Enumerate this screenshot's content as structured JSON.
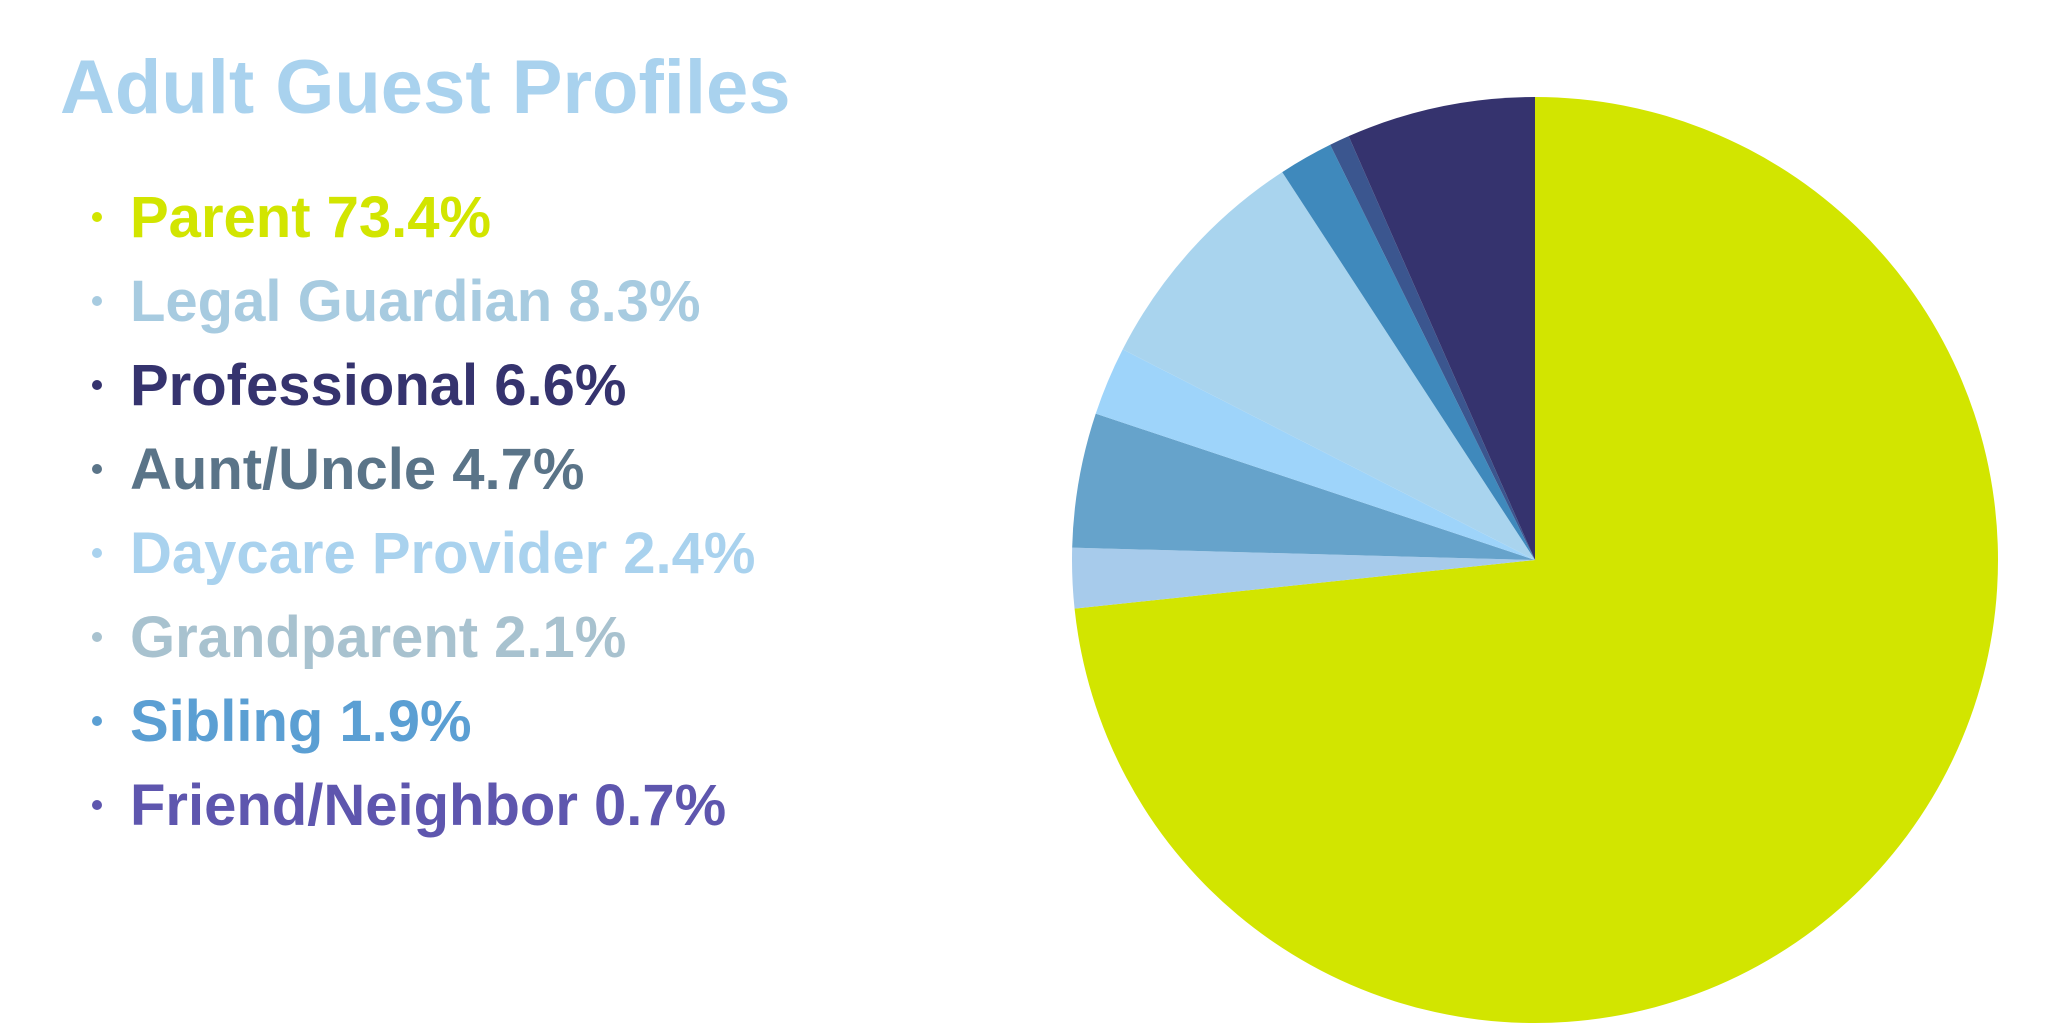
{
  "title": "Adult Guest Profiles",
  "title_color": "#a9d2ee",
  "chart_data": {
    "type": "pie",
    "title": "Adult Guest Profiles",
    "slices": [
      {
        "label": "Parent",
        "value": 73.4,
        "text": "Parent 73.4%",
        "color": "#d2e500"
      },
      {
        "label": "Legal Guardian",
        "value": 8.3,
        "text": "Legal Guardian 8.3%",
        "color": "#a9d4ee"
      },
      {
        "label": "Professional",
        "value": 6.6,
        "text": "Professional 6.6%",
        "color": "#35336e"
      },
      {
        "label": "Aunt/Uncle",
        "value": 4.7,
        "text": "Aunt/Uncle 4.7%",
        "color": "#66a3cb"
      },
      {
        "label": "Daycare Provider",
        "value": 2.4,
        "text": "Daycare Provider 2.4%",
        "color": "#9ed4fa"
      },
      {
        "label": "Grandparent",
        "value": 2.1,
        "text": "Grandparent 2.1%",
        "color": "#a7cbeb"
      },
      {
        "label": "Sibling",
        "value": 1.9,
        "text": "Sibling 1.9%",
        "color": "#3f89bc"
      },
      {
        "label": "Friend/Neighbor",
        "value": 0.7,
        "text": "Friend/Neighbor 0.7%",
        "color": "#3b568f"
      }
    ],
    "legend_colors": [
      "#d2e500",
      "#a7cbe0",
      "#35336e",
      "#5a7488",
      "#a9d2ee",
      "#a8c2cf",
      "#5b9fd3",
      "#5e56ae"
    ],
    "slice_order": [
      "Parent",
      "Grandparent",
      "Aunt/Uncle",
      "Daycare Provider",
      "Legal Guardian",
      "Sibling",
      "Friend/Neighbor",
      "Professional"
    ],
    "legend_placement": "left"
  }
}
